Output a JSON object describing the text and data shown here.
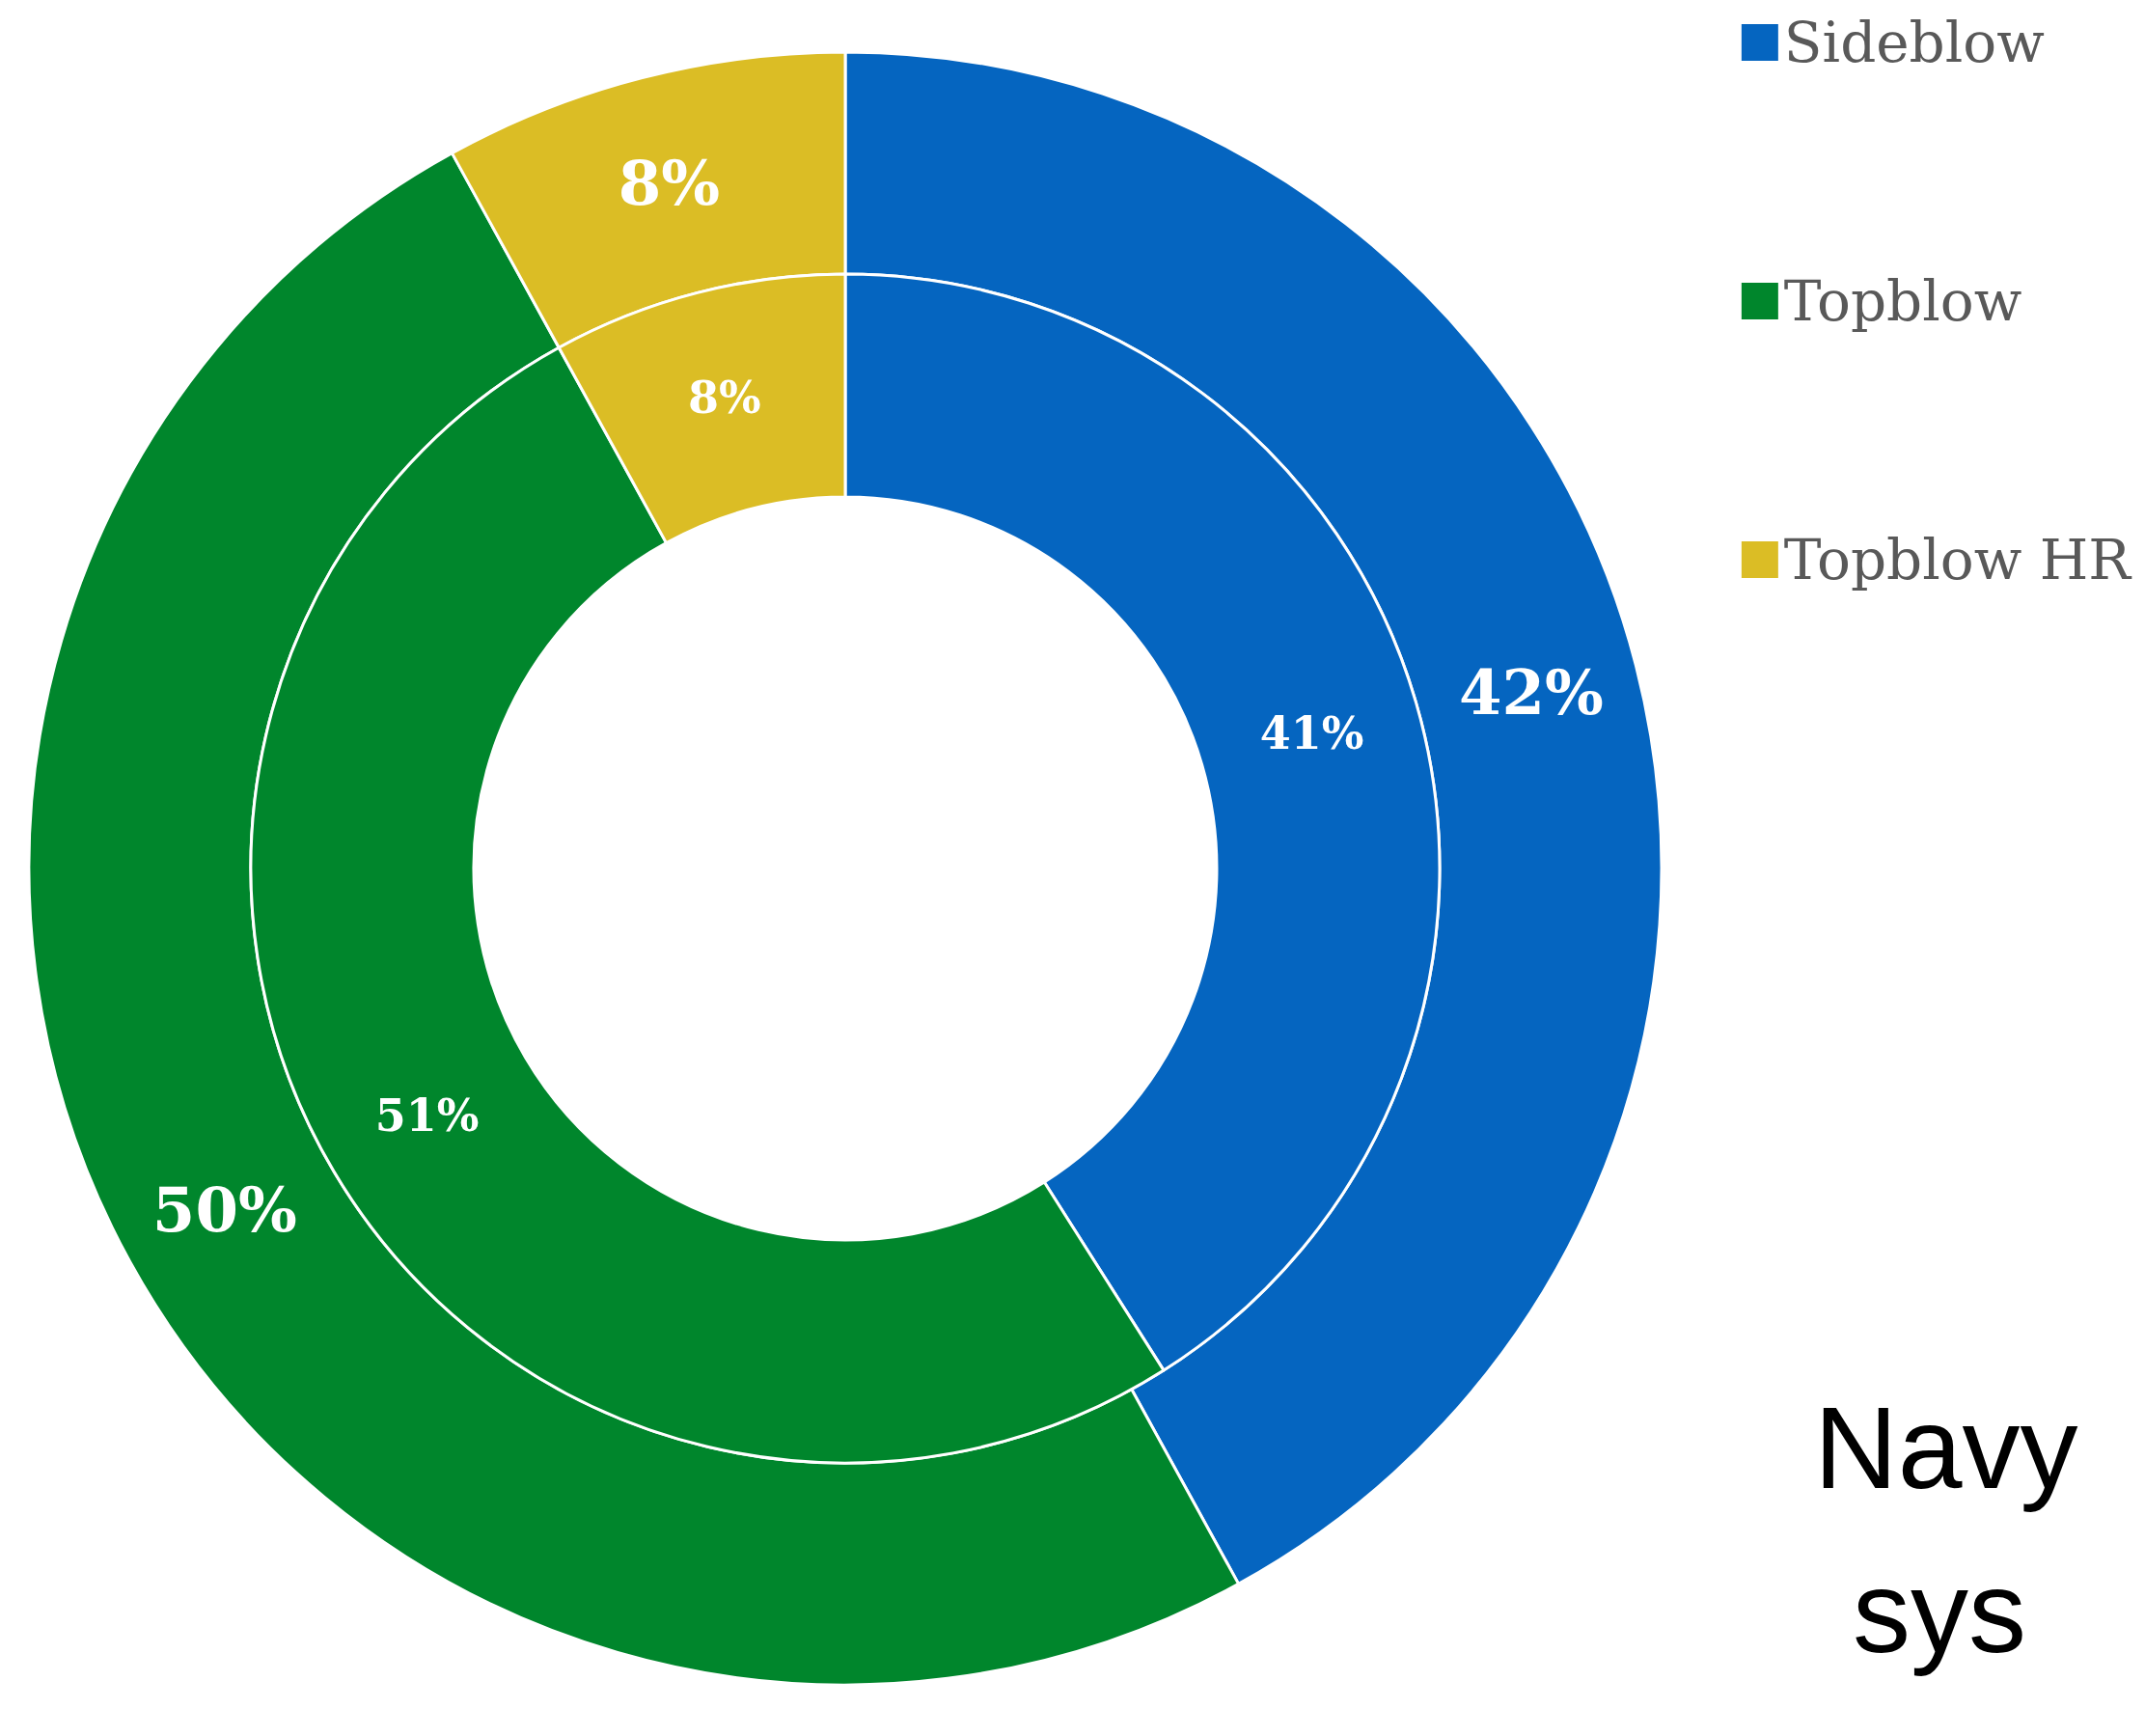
{
  "chart_data": {
    "type": "donut",
    "categories": [
      "Sideblow",
      "Topblow",
      "Topblow HR"
    ],
    "colors": [
      "#0565c0",
      "#00862c",
      "#dbbd25"
    ],
    "series": [
      {
        "values": [
          42,
          50,
          8
        ],
        "value_labels": [
          "42%",
          "50%",
          "8%"
        ]
      },
      {
        "values": [
          41,
          51,
          8
        ],
        "value_labels": [
          "41%",
          "51%",
          "8%"
        ]
      }
    ],
    "legend": "top right",
    "annotations": [
      "Navy",
      "sys"
    ]
  }
}
